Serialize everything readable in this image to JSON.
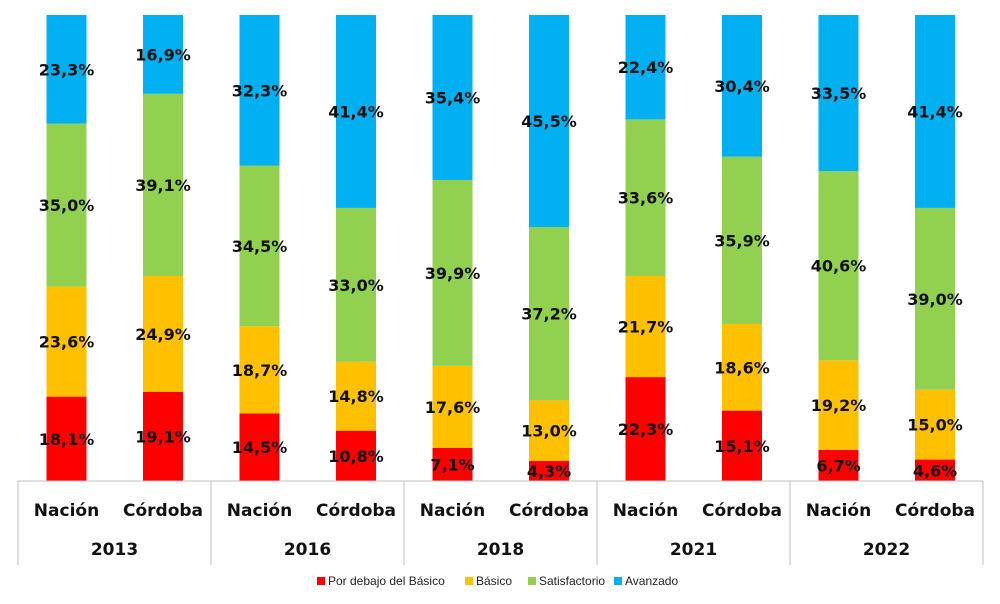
{
  "chart_data": {
    "type": "bar",
    "stacked": true,
    "groups": [
      "2013",
      "2016",
      "2018",
      "2021",
      "2022"
    ],
    "categories": [
      "Nación",
      "Córdoba"
    ],
    "series": [
      {
        "name": "Por debajo del Básico",
        "color": "#FF0000",
        "values": [
          [
            18.1,
            19.1
          ],
          [
            14.5,
            10.8
          ],
          [
            7.1,
            4.3
          ],
          [
            22.3,
            15.1
          ],
          [
            6.7,
            4.6
          ]
        ]
      },
      {
        "name": "Básico",
        "color": "#FFC000",
        "values": [
          [
            23.6,
            24.9
          ],
          [
            18.7,
            14.8
          ],
          [
            17.6,
            13.0
          ],
          [
            21.7,
            18.6
          ],
          [
            19.2,
            15.0
          ]
        ]
      },
      {
        "name": "Satisfactorio",
        "color": "#92D050",
        "values": [
          [
            35.0,
            39.1
          ],
          [
            34.5,
            33.0
          ],
          [
            39.9,
            37.2
          ],
          [
            33.6,
            35.9
          ],
          [
            40.6,
            39.0
          ]
        ]
      },
      {
        "name": "Avanzado",
        "color": "#00B0F0",
        "values": [
          [
            23.3,
            16.9
          ],
          [
            32.3,
            41.4
          ],
          [
            35.4,
            45.5
          ],
          [
            22.4,
            30.4
          ],
          [
            33.5,
            41.4
          ]
        ]
      }
    ],
    "data_label_format": "0,0%",
    "ylim": [
      0,
      100
    ],
    "grid": false,
    "legend": "bottom"
  }
}
